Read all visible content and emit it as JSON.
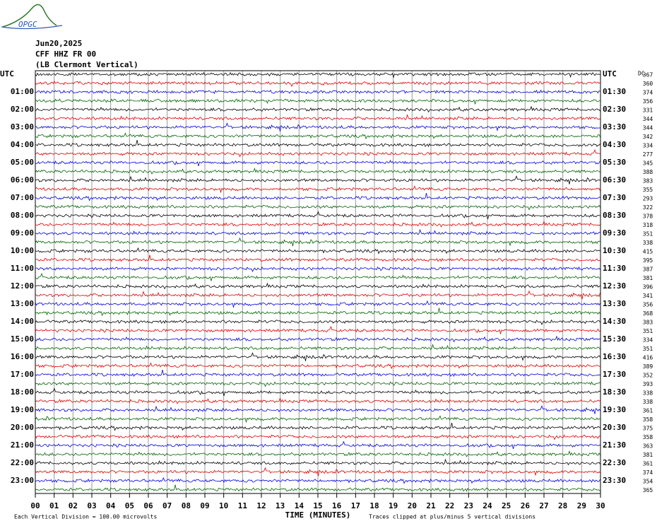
{
  "header": {
    "logo": "OPGC",
    "date": "Jun20,2025",
    "station": "CFF HHZ FR 00",
    "location": "(LB Clermont Vertical)"
  },
  "plot": {
    "left_labels": [
      "UTC",
      "01:00",
      "02:00",
      "03:00",
      "04:00",
      "05:00",
      "06:00",
      "07:00",
      "08:00",
      "09:00",
      "10:00",
      "11:00",
      "12:00",
      "13:00",
      "14:00",
      "15:00",
      "16:00",
      "17:00",
      "18:00",
      "19:00",
      "20:00",
      "21:00",
      "22:00",
      "23:00"
    ],
    "right_labels": [
      "UTC",
      "01:30",
      "02:30",
      "03:30",
      "04:30",
      "05:30",
      "06:30",
      "07:30",
      "08:30",
      "09:30",
      "10:30",
      "11:30",
      "12:30",
      "13:30",
      "14:30",
      "15:30",
      "16:30",
      "17:30",
      "18:30",
      "19:30",
      "20:30",
      "21:30",
      "22:30",
      "23:30"
    ],
    "dc_label": "DC",
    "dc_values": [
      367,
      360,
      374,
      356,
      331,
      344,
      344,
      342,
      334,
      277,
      345,
      388,
      383,
      355,
      293,
      322,
      378,
      318,
      351,
      338,
      415,
      395,
      387,
      381,
      396,
      341,
      356,
      368,
      383,
      351,
      334,
      351,
      416,
      389,
      352,
      393,
      338,
      338,
      361,
      358,
      375,
      358,
      363,
      381,
      361,
      374,
      354,
      365
    ],
    "x_ticks": [
      "00",
      "01",
      "02",
      "03",
      "04",
      "05",
      "06",
      "07",
      "08",
      "09",
      "10",
      "11",
      "12",
      "13",
      "14",
      "15",
      "16",
      "17",
      "18",
      "19",
      "20",
      "21",
      "22",
      "23",
      "24",
      "25",
      "26",
      "27",
      "28",
      "29",
      "30"
    ],
    "x_label": "TIME (MINUTES)"
  },
  "footer": {
    "scale_note": "Each Vertical Division =  100.00 microvolts",
    "clip_note": "Traces clipped at plus/minus 5 vertical divisions"
  }
}
